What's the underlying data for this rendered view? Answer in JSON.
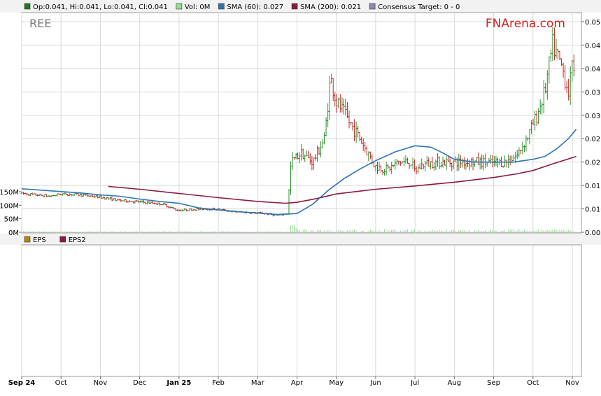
{
  "legend_top": [
    {
      "label": "Op:0.041, Hi:0.041, Lo:0.041, Cl:0.041",
      "color": "#1e7a1e"
    },
    {
      "label": "Vol: 0M",
      "color": "#8ee08e"
    },
    {
      "label": "SMA (60): 0.027",
      "color": "#2e74b5"
    },
    {
      "label": "SMA (200): 0.021",
      "color": "#8b1a3a"
    },
    {
      "label": "Consensus Target: 0 - 0",
      "color": "#8a8ab0"
    }
  ],
  "legend_bottom": [
    {
      "label": "EPS",
      "color": "#b8860b"
    },
    {
      "label": "EPS2",
      "color": "#8b1a4a"
    }
  ],
  "ticker": "REE",
  "brand": "FNArena.com",
  "colors": {
    "up": "#2a8f2a",
    "down": "#c02828",
    "sma60": "#2e74b5",
    "sma200": "#8b1a3a",
    "vol": "#8ee08e",
    "grid": "#d8d8d8"
  },
  "chart_data": {
    "type": "candlestick",
    "ylim": [
      0.005,
      0.051
    ],
    "y_ticks": [
      "0.050",
      "0.045",
      "0.040",
      "0.035",
      "0.030",
      "0.025",
      "0.020",
      "0.015",
      "0.010",
      "0.005"
    ],
    "y_tick_values": [
      0.05,
      0.045,
      0.04,
      0.035,
      0.03,
      0.025,
      0.02,
      0.015,
      0.01,
      0.005
    ],
    "vol_ticks": [
      "150M",
      "100M",
      "50M",
      "0M"
    ],
    "vol_tick_values": [
      150,
      100,
      50,
      0
    ],
    "x_ticks": [
      {
        "label": "Sep 24",
        "t": 0.0,
        "bold": true
      },
      {
        "label": "Oct",
        "t": 1.0
      },
      {
        "label": "Nov",
        "t": 2.0
      },
      {
        "label": "Dec",
        "t": 3.0
      },
      {
        "label": "Jan 25",
        "t": 4.0,
        "bold": true
      },
      {
        "label": "Feb",
        "t": 5.0
      },
      {
        "label": "Mar",
        "t": 6.0
      },
      {
        "label": "Apr",
        "t": 7.0
      },
      {
        "label": "May",
        "t": 8.0
      },
      {
        "label": "Jun",
        "t": 9.0
      },
      {
        "label": "Jul",
        "t": 10.0
      },
      {
        "label": "Aug",
        "t": 11.0
      },
      {
        "label": "Sep",
        "t": 12.0
      },
      {
        "label": "Oct",
        "t": 13.0
      },
      {
        "label": "Nov",
        "t": 14.0
      }
    ],
    "sma60": [
      [
        0.0,
        0.0143
      ],
      [
        0.5,
        0.014
      ],
      [
        1.0,
        0.0137
      ],
      [
        1.5,
        0.0134
      ],
      [
        2.0,
        0.013
      ],
      [
        2.5,
        0.0127
      ],
      [
        3.0,
        0.0121
      ],
      [
        3.5,
        0.0116
      ],
      [
        4.0,
        0.0112
      ],
      [
        4.5,
        0.0102
      ],
      [
        5.0,
        0.0098
      ],
      [
        5.5,
        0.0094
      ],
      [
        6.0,
        0.0091
      ],
      [
        6.5,
        0.0088
      ],
      [
        7.0,
        0.009
      ],
      [
        7.4,
        0.011
      ],
      [
        7.8,
        0.014
      ],
      [
        8.2,
        0.0165
      ],
      [
        8.6,
        0.0185
      ],
      [
        9.0,
        0.0203
      ],
      [
        9.5,
        0.0222
      ],
      [
        10.0,
        0.0235
      ],
      [
        10.4,
        0.0232
      ],
      [
        10.7,
        0.022
      ],
      [
        11.0,
        0.0206
      ],
      [
        11.5,
        0.02
      ],
      [
        12.0,
        0.02
      ],
      [
        12.5,
        0.02
      ],
      [
        13.0,
        0.0206
      ],
      [
        13.3,
        0.0212
      ],
      [
        13.6,
        0.0228
      ],
      [
        13.9,
        0.025
      ],
      [
        14.1,
        0.027
      ]
    ],
    "sma200": [
      [
        2.2,
        0.0148
      ],
      [
        3.0,
        0.0142
      ],
      [
        4.0,
        0.0133
      ],
      [
        5.0,
        0.0124
      ],
      [
        6.0,
        0.0116
      ],
      [
        6.7,
        0.0112
      ],
      [
        7.0,
        0.0114
      ],
      [
        7.5,
        0.0122
      ],
      [
        8.0,
        0.0132
      ],
      [
        9.0,
        0.0142
      ],
      [
        10.0,
        0.0149
      ],
      [
        11.0,
        0.0157
      ],
      [
        12.0,
        0.0167
      ],
      [
        12.6,
        0.0175
      ],
      [
        13.0,
        0.0182
      ],
      [
        13.5,
        0.0196
      ],
      [
        14.1,
        0.0212
      ]
    ]
  }
}
